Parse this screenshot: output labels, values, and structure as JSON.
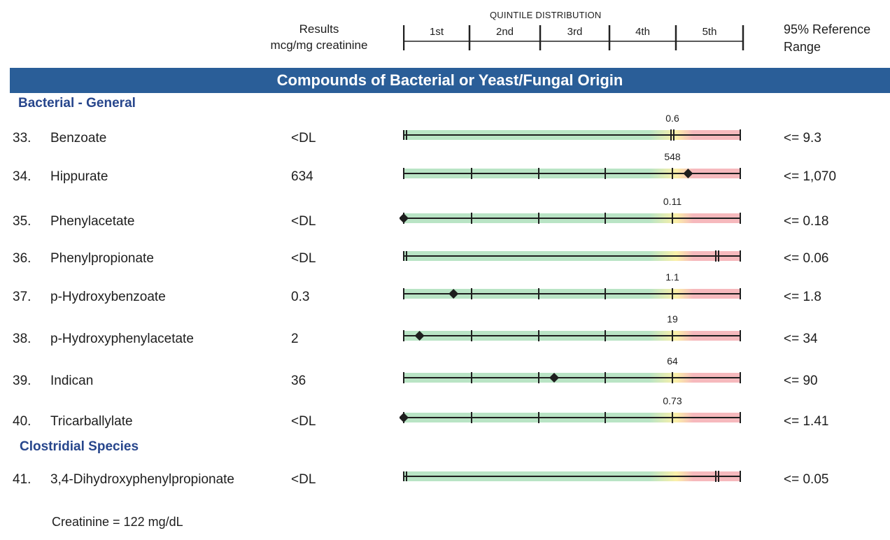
{
  "header": {
    "results_line1": "Results",
    "results_line2": "mcg/mg creatinine",
    "quintile_title": "QUINTILE DISTRIBUTION",
    "quintiles": [
      "1st",
      "2nd",
      "3rd",
      "4th",
      "5th"
    ],
    "range_line1": "95% Reference",
    "range_line2": "Range"
  },
  "banner": "Compounds of Bacterial or Yeast/Fungal Origin",
  "sections": [
    {
      "title": "Bacterial - General",
      "rows": [
        {
          "num": "33.",
          "name": "Benzoate",
          "result": "<DL",
          "scale_label": "0.6",
          "marker": "dl",
          "ticks": false,
          "range": "<= 9.3"
        },
        {
          "num": "34.",
          "name": "Hippurate",
          "result": "634",
          "scale_label": "548",
          "marker": 0.845,
          "ticks": true,
          "range": "<= 1,070"
        },
        {
          "num": "35.",
          "name": "Phenylacetate",
          "result": "<DL",
          "scale_label": "0.11",
          "marker": 0.0,
          "ticks": true,
          "range": "<= 0.18"
        },
        {
          "num": "36.",
          "name": "Phenylpropionate",
          "result": "<DL",
          "scale_label": "",
          "marker": "dl",
          "ticks": false,
          "range": "<= 0.06"
        },
        {
          "num": "37.",
          "name": "p-Hydroxybenzoate",
          "result": "0.3",
          "scale_label": "1.1",
          "marker": 0.148,
          "ticks": true,
          "range": "<= 1.8"
        },
        {
          "num": "38.",
          "name": "p-Hydroxyphenylacetate",
          "result": "2",
          "scale_label": "19",
          "marker": 0.047,
          "ticks": true,
          "range": "<= 34"
        },
        {
          "num": "39.",
          "name": "Indican",
          "result": "36",
          "scale_label": "64",
          "marker": 0.447,
          "ticks": true,
          "range": "<= 90"
        },
        {
          "num": "40.",
          "name": "Tricarballylate",
          "result": "<DL",
          "scale_label": "0.73",
          "marker": 0.0,
          "ticks": true,
          "range": "<= 1.41"
        }
      ]
    },
    {
      "title": "Clostridial Species",
      "rows": [
        {
          "num": "41.",
          "name": "3,4-Dihydroxyphenylpropionate",
          "result": "<DL",
          "scale_label": "",
          "marker": "dl",
          "ticks": false,
          "range": "<= 0.05"
        }
      ]
    }
  ],
  "footer": {
    "creatinine": "Creatinine = 122   mg/dL"
  },
  "colors": {
    "banner": "#2a5e98",
    "section_title": "#27468c",
    "zone_green": "#b9e4c5",
    "zone_yellow": "#fbf0a8",
    "zone_red": "#f6b9bd"
  }
}
